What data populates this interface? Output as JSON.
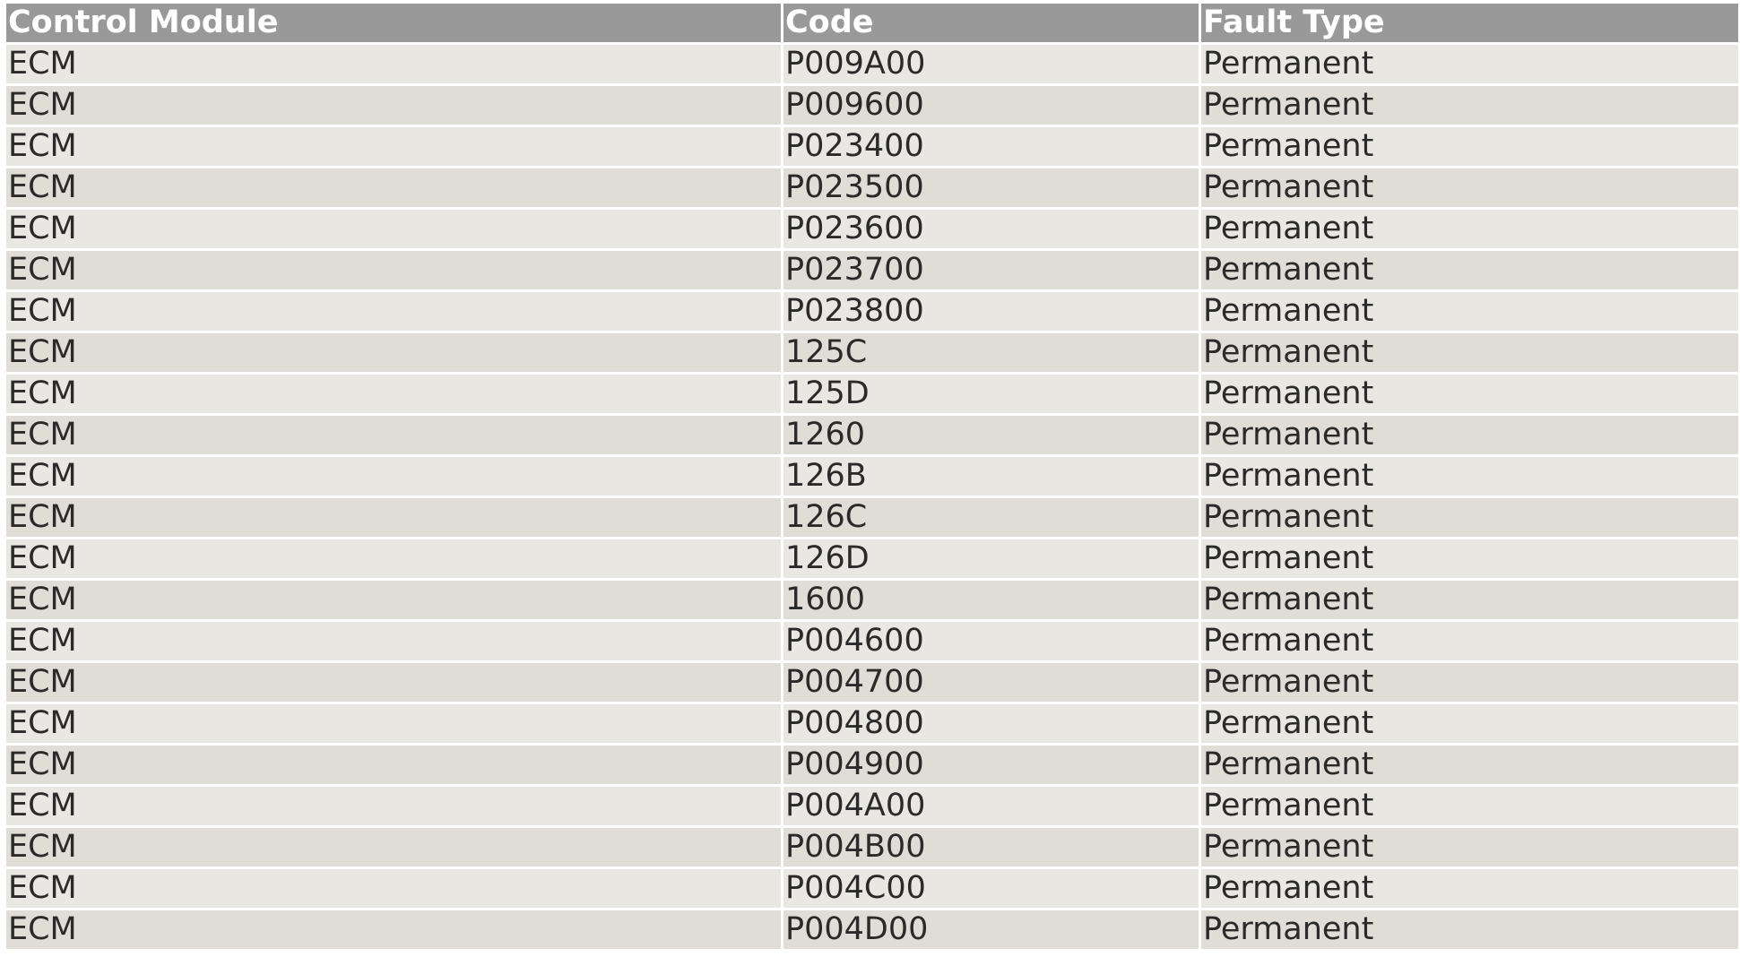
{
  "table": {
    "headers": [
      "Control Module",
      "Code",
      "Fault Type"
    ],
    "rows": [
      [
        "ECM",
        "P009A00",
        "Permanent"
      ],
      [
        "ECM",
        "P009600",
        "Permanent"
      ],
      [
        "ECM",
        "P023400",
        "Permanent"
      ],
      [
        "ECM",
        "P023500",
        "Permanent"
      ],
      [
        "ECM",
        "P023600",
        "Permanent"
      ],
      [
        "ECM",
        "P023700",
        "Permanent"
      ],
      [
        "ECM",
        "P023800",
        "Permanent"
      ],
      [
        "ECM",
        "125C",
        "Permanent"
      ],
      [
        "ECM",
        "125D",
        "Permanent"
      ],
      [
        "ECM",
        "1260",
        "Permanent"
      ],
      [
        "ECM",
        "126B",
        "Permanent"
      ],
      [
        "ECM",
        "126C",
        "Permanent"
      ],
      [
        "ECM",
        "126D",
        "Permanent"
      ],
      [
        "ECM",
        "1600",
        "Permanent"
      ],
      [
        "ECM",
        "P004600",
        "Permanent"
      ],
      [
        "ECM",
        "P004700",
        "Permanent"
      ],
      [
        "ECM",
        "P004800",
        "Permanent"
      ],
      [
        "ECM",
        "P004900",
        "Permanent"
      ],
      [
        "ECM",
        "P004A00",
        "Permanent"
      ],
      [
        "ECM",
        "P004B00",
        "Permanent"
      ],
      [
        "ECM",
        "P004C00",
        "Permanent"
      ],
      [
        "ECM",
        "P004D00",
        "Permanent"
      ]
    ]
  },
  "colors": {
    "header_bg": "#999999",
    "row_odd": "#e9e7e2",
    "row_even": "#dfddd6"
  }
}
